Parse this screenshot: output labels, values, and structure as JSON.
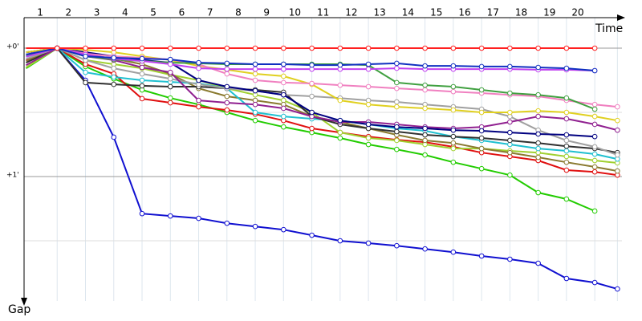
{
  "chart_data": {
    "type": "line",
    "x_label": "Time",
    "y_label": "Gap",
    "x": [
      0.5,
      1.6,
      2.6,
      3.6,
      4.6,
      5.6,
      6.6,
      7.6,
      8.6,
      9.6,
      10.6,
      11.6,
      12.6,
      13.6,
      14.6,
      15.6,
      16.6,
      17.6,
      18.6,
      19.6,
      20.6,
      21.4
    ],
    "xlim": [
      0.43,
      21.56
    ],
    "xticks": [
      1,
      2,
      3,
      4,
      5,
      6,
      7,
      8,
      9,
      10,
      11,
      12,
      13,
      14,
      15,
      16,
      17,
      18,
      19,
      20
    ],
    "ylim": [
      -14.25,
      118.1
    ],
    "y_inverted": true,
    "yticks": [
      {
        "value": 0,
        "label": "+0'"
      },
      {
        "value": 60,
        "label": "+1'"
      }
    ],
    "y_minor_grid": [
      30,
      90
    ],
    "grid": true,
    "series": [
      {
        "color": "#1010d0",
        "values": [
          1.9,
          0,
          15,
          41.6,
          77.3,
          78.4,
          79.5,
          81.8,
          83.3,
          84.8,
          87.4,
          90,
          91.1,
          92.3,
          93.8,
          95.3,
          97.1,
          98.6,
          100.5,
          107.6,
          109.5,
          112.5
        ]
      },
      {
        "color": "#22cc00",
        "values": [
          9.4,
          0,
          8.6,
          14.3,
          19.5,
          23.3,
          26.3,
          30,
          33.8,
          36.8,
          39.4,
          42,
          45,
          47.3,
          49.9,
          53.3,
          56.3,
          59.3,
          67.5,
          70.5,
          76.1,
          null
        ]
      },
      {
        "color": "#e01010",
        "values": [
          5.6,
          0,
          7.5,
          12,
          23.6,
          25.5,
          27.4,
          28.9,
          30.8,
          33.8,
          37.5,
          39.4,
          41.3,
          42.8,
          43.9,
          46.1,
          48.8,
          50.6,
          52.5,
          57,
          57.8,
          59.3
        ]
      },
      {
        "color": "#a0d030",
        "values": [
          9,
          0,
          5.6,
          7.5,
          9.4,
          12.4,
          15,
          18.8,
          21.8,
          24.4,
          30,
          39.4,
          42,
          43.1,
          45,
          46.9,
          46.9,
          48,
          48.8,
          50.6,
          52.5,
          53.6
        ]
      },
      {
        "color": "#8a7a30",
        "values": [
          6,
          0,
          3,
          4.9,
          7.5,
          12,
          18.8,
          22.5,
          24.4,
          26.3,
          31.9,
          34.5,
          37.5,
          40.5,
          43.1,
          44.3,
          46.9,
          48.8,
          51,
          53.3,
          55.5,
          57.4
        ]
      },
      {
        "color": "#20c0d0",
        "values": [
          4,
          0,
          11.3,
          13.5,
          15,
          15.8,
          16.5,
          18.8,
          30,
          31.9,
          33,
          33.8,
          35.6,
          37.5,
          38.6,
          41.3,
          43.1,
          45,
          46.9,
          48,
          49.5,
          51.8
        ]
      },
      {
        "color": "#303030",
        "values": [
          6.8,
          0,
          16.1,
          16.9,
          17.6,
          18,
          18,
          18.8,
          19.5,
          20.6,
          31.9,
          35.6,
          37.5,
          39,
          40.5,
          41.3,
          42,
          43.1,
          44.3,
          45.8,
          46.9,
          48.8
        ]
      },
      {
        "color": "#a0a0a0",
        "values": [
          5,
          0,
          5.6,
          9.4,
          12,
          14.3,
          16.9,
          18.8,
          19.9,
          21.8,
          22.5,
          23.3,
          24.4,
          25.1,
          26.3,
          27.4,
          28.5,
          31.9,
          38.3,
          43.1,
          46.1,
          49.9
        ]
      },
      {
        "color": "#902090",
        "values": [
          8,
          0,
          3.8,
          5.6,
          9,
          11.3,
          24.4,
          25.5,
          26.3,
          28.1,
          31.9,
          34.5,
          34.5,
          35.6,
          36.8,
          37.5,
          36.8,
          34.5,
          31.9,
          33,
          35.6,
          38.3
        ]
      },
      {
        "color": "#000080",
        "values": [
          2,
          0,
          1.9,
          3.8,
          5.6,
          6.8,
          15,
          18,
          19.9,
          21.8,
          30,
          33.8,
          35.6,
          36.8,
          37.5,
          38.3,
          38.6,
          39.4,
          40.1,
          40.5,
          41.3,
          null
        ]
      },
      {
        "color": "#e0d020",
        "values": [
          1.9,
          0,
          0.8,
          1.9,
          3.8,
          5.6,
          8.3,
          10.1,
          12,
          13.1,
          16.9,
          24.4,
          26.3,
          27.4,
          28.1,
          28.9,
          30,
          30,
          29.3,
          30,
          31.9,
          33.8
        ]
      },
      {
        "color": "#f080c0",
        "values": [
          3,
          0,
          2.6,
          3.8,
          4.5,
          5.3,
          7.5,
          12,
          15,
          16.1,
          16.5,
          17.3,
          18,
          18.8,
          19.5,
          20.3,
          21,
          21.8,
          22.5,
          24.4,
          26.3,
          27.4
        ]
      },
      {
        "color": "#40a040",
        "values": [
          3.8,
          0,
          3.8,
          5.3,
          6,
          6.8,
          7.1,
          7.5,
          7.5,
          7.5,
          7.5,
          7.5,
          7.9,
          16.1,
          17.3,
          18,
          19.5,
          21,
          21.8,
          23.3,
          28.5,
          null
        ]
      },
      {
        "color": "#c040f0",
        "values": [
          4,
          0,
          3,
          4.9,
          6,
          7.5,
          9.4,
          9.8,
          9.8,
          9.8,
          9.8,
          9.8,
          9.8,
          9.4,
          9.8,
          9.8,
          9.8,
          9.8,
          10.1,
          10.1,
          10.5,
          null
        ]
      },
      {
        "color": "#1030c0",
        "values": [
          3,
          0,
          3.8,
          4.5,
          4.9,
          5.3,
          6.8,
          7.1,
          7.5,
          7.5,
          7.9,
          7.9,
          7.5,
          7.1,
          8.3,
          8.3,
          8.6,
          8.6,
          9,
          9.4,
          10.5,
          null
        ]
      },
      {
        "color": "#ff2020",
        "values": [
          0,
          0,
          0,
          0,
          0,
          0,
          0,
          0,
          0,
          0,
          0,
          0,
          0,
          0,
          0,
          0,
          0,
          0,
          0,
          0,
          0,
          null
        ]
      }
    ]
  }
}
